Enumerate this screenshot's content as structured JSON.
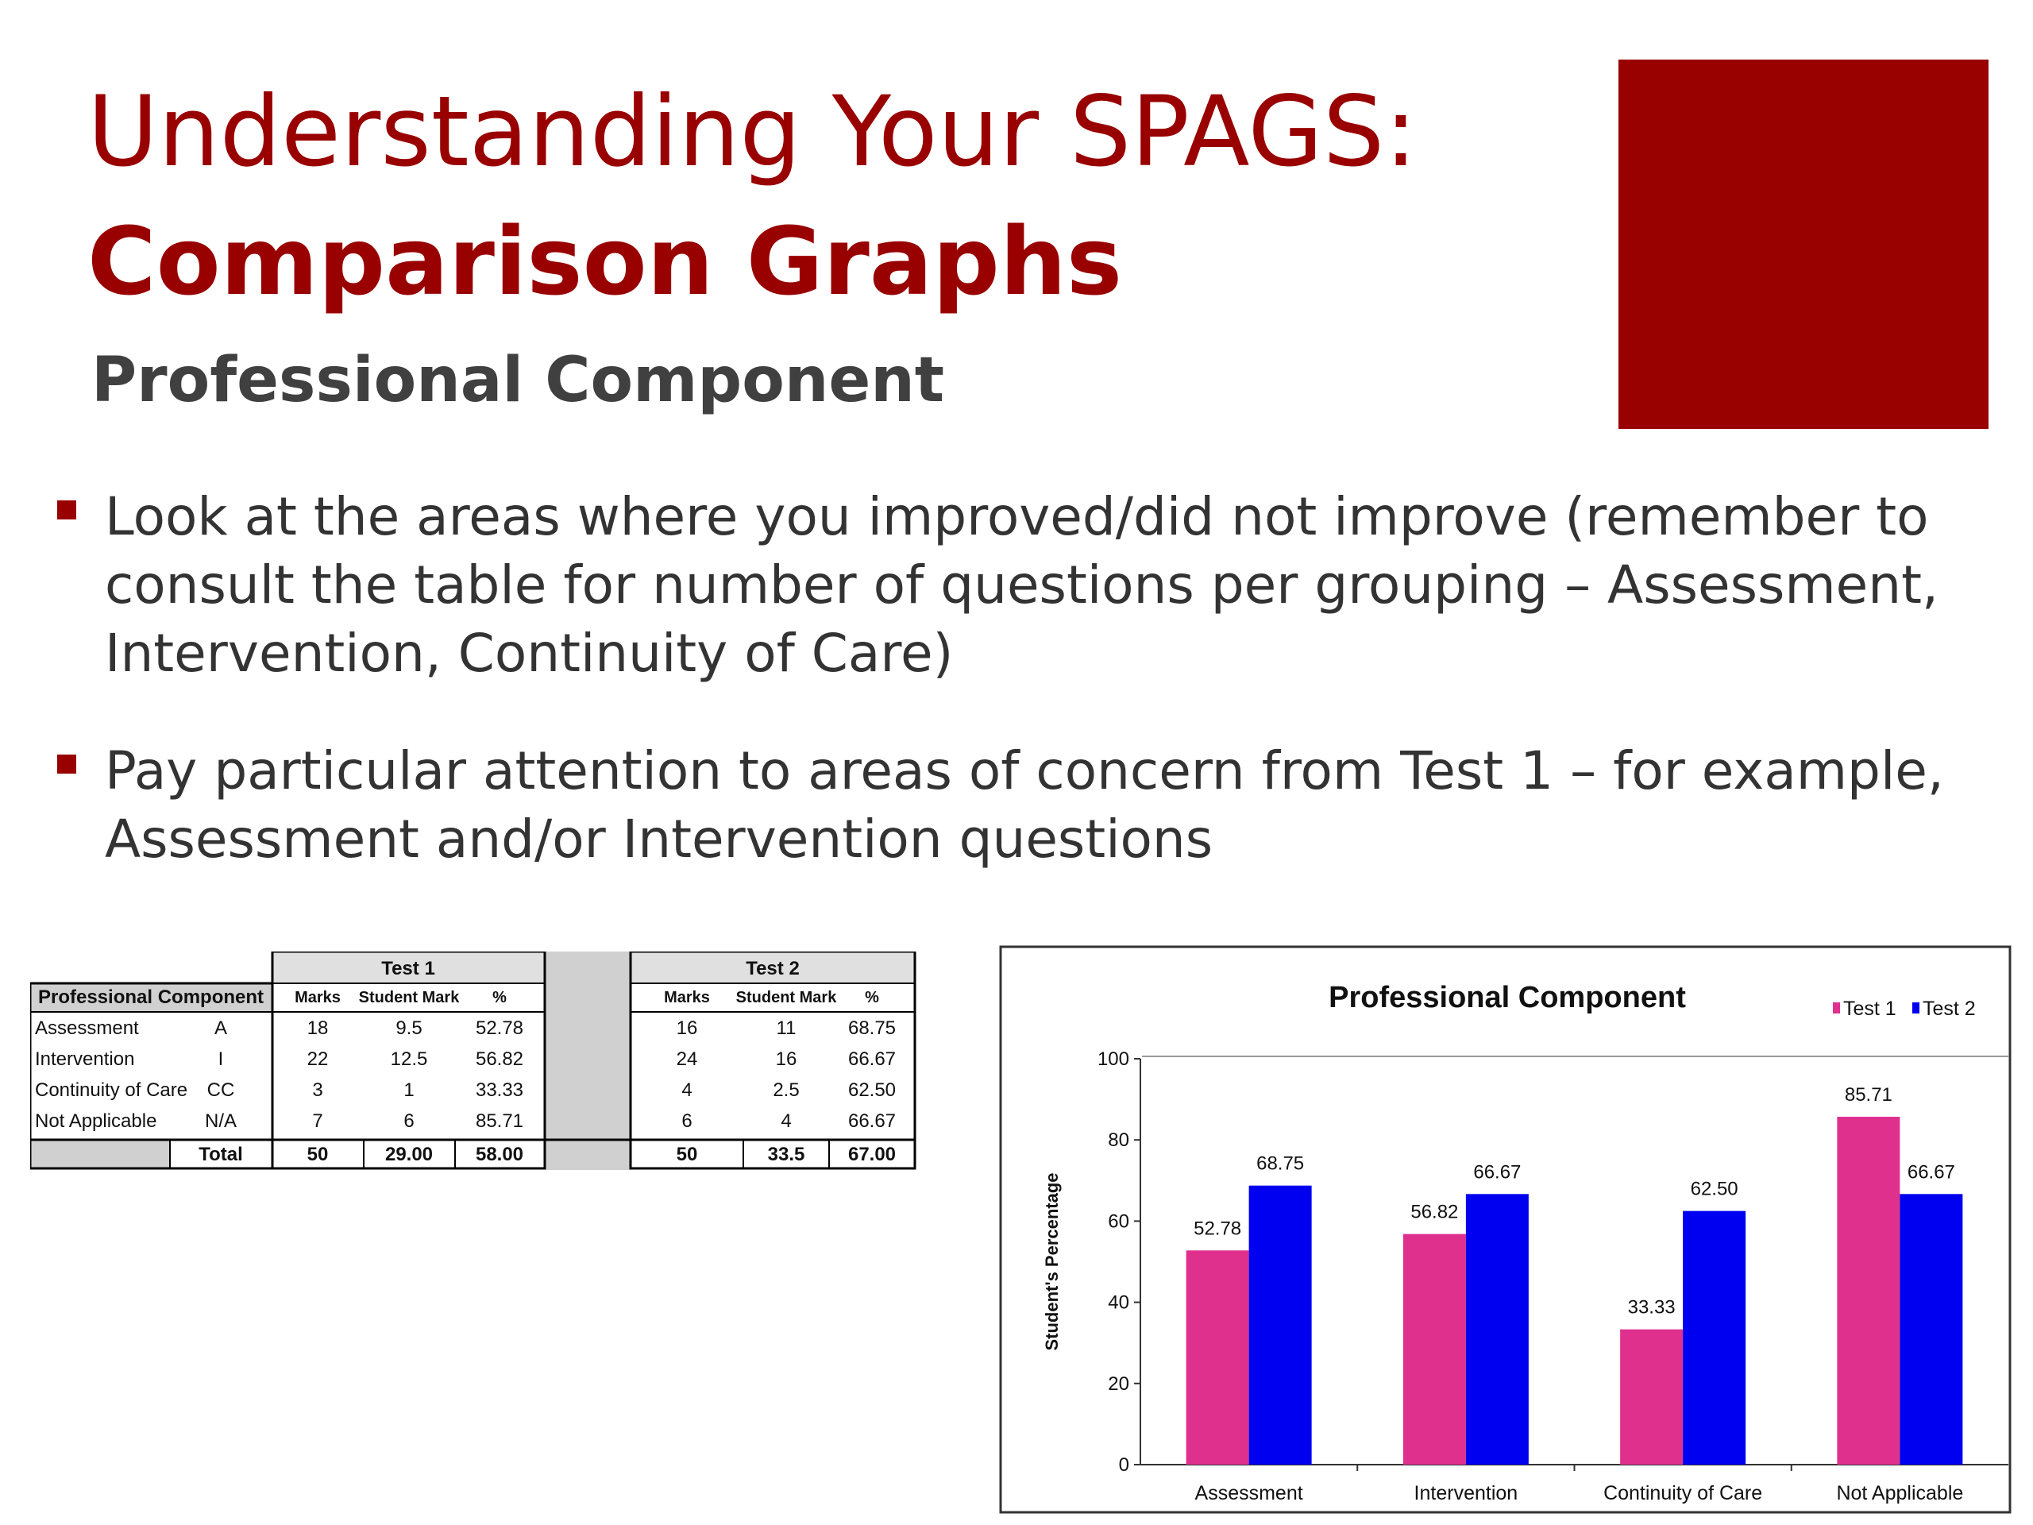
{
  "slide": {
    "title_line1": "Understanding Your SPAGS:",
    "title_line2": "Comparison Graphs",
    "subtitle": "Professional Component",
    "accent_color": "#990000",
    "bullets": [
      "Look at the areas where you improved/did not improve (remember to consult the table for number of questions per grouping – Assessment, Intervention, Continuity of Care)",
      "Pay particular attention to areas of concern from Test 1 – for example, Assessment and/or Intervention questions"
    ]
  },
  "table": {
    "header_label": "Professional Component",
    "test1_label": "Test 1",
    "test2_label": "Test 2",
    "col_marks": "Marks",
    "col_student_mark": "Student Mark",
    "col_percent": "%",
    "rows": [
      {
        "name": "Assessment",
        "code": "A",
        "t1": [
          "18",
          "9.5",
          "52.78"
        ],
        "t2": [
          "16",
          "11",
          "68.75"
        ]
      },
      {
        "name": "Intervention",
        "code": "I",
        "t1": [
          "22",
          "12.5",
          "56.82"
        ],
        "t2": [
          "24",
          "16",
          "66.67"
        ]
      },
      {
        "name": "Continuity of Care",
        "code": "CC",
        "t1": [
          "3",
          "1",
          "33.33"
        ],
        "t2": [
          "4",
          "2.5",
          "62.50"
        ]
      },
      {
        "name": "Not Applicable",
        "code": "N/A",
        "t1": [
          "7",
          "6",
          "85.71"
        ],
        "t2": [
          "6",
          "4",
          "66.67"
        ]
      }
    ],
    "total_label": "Total",
    "total_t1": [
      "50",
      "29.00",
      "58.00"
    ],
    "total_t2": [
      "50",
      "33.5",
      "67.00"
    ]
  },
  "chart_data": {
    "type": "bar",
    "title": "Professional Component",
    "xlabel": "",
    "ylabel": "Student's Percentage",
    "categories": [
      "Assessment",
      "Intervention",
      "Continuity of Care",
      "Not Applicable"
    ],
    "series": [
      {
        "name": "Test 1",
        "values": [
          52.78,
          56.82,
          33.33,
          85.71
        ],
        "color": "#E0308E"
      },
      {
        "name": "Test 2",
        "values": [
          68.75,
          66.67,
          62.5,
          66.67
        ],
        "color": "#0000F0"
      }
    ],
    "data_labels": [
      [
        "52.78",
        "56.82",
        "33.33",
        "85.71"
      ],
      [
        "68.75",
        "66.67",
        "62.50",
        "66.67"
      ]
    ],
    "ylim": [
      0,
      100
    ],
    "yticks": [
      0,
      20,
      40,
      60,
      80,
      100
    ],
    "legend_position": "top-right",
    "grid": false
  }
}
